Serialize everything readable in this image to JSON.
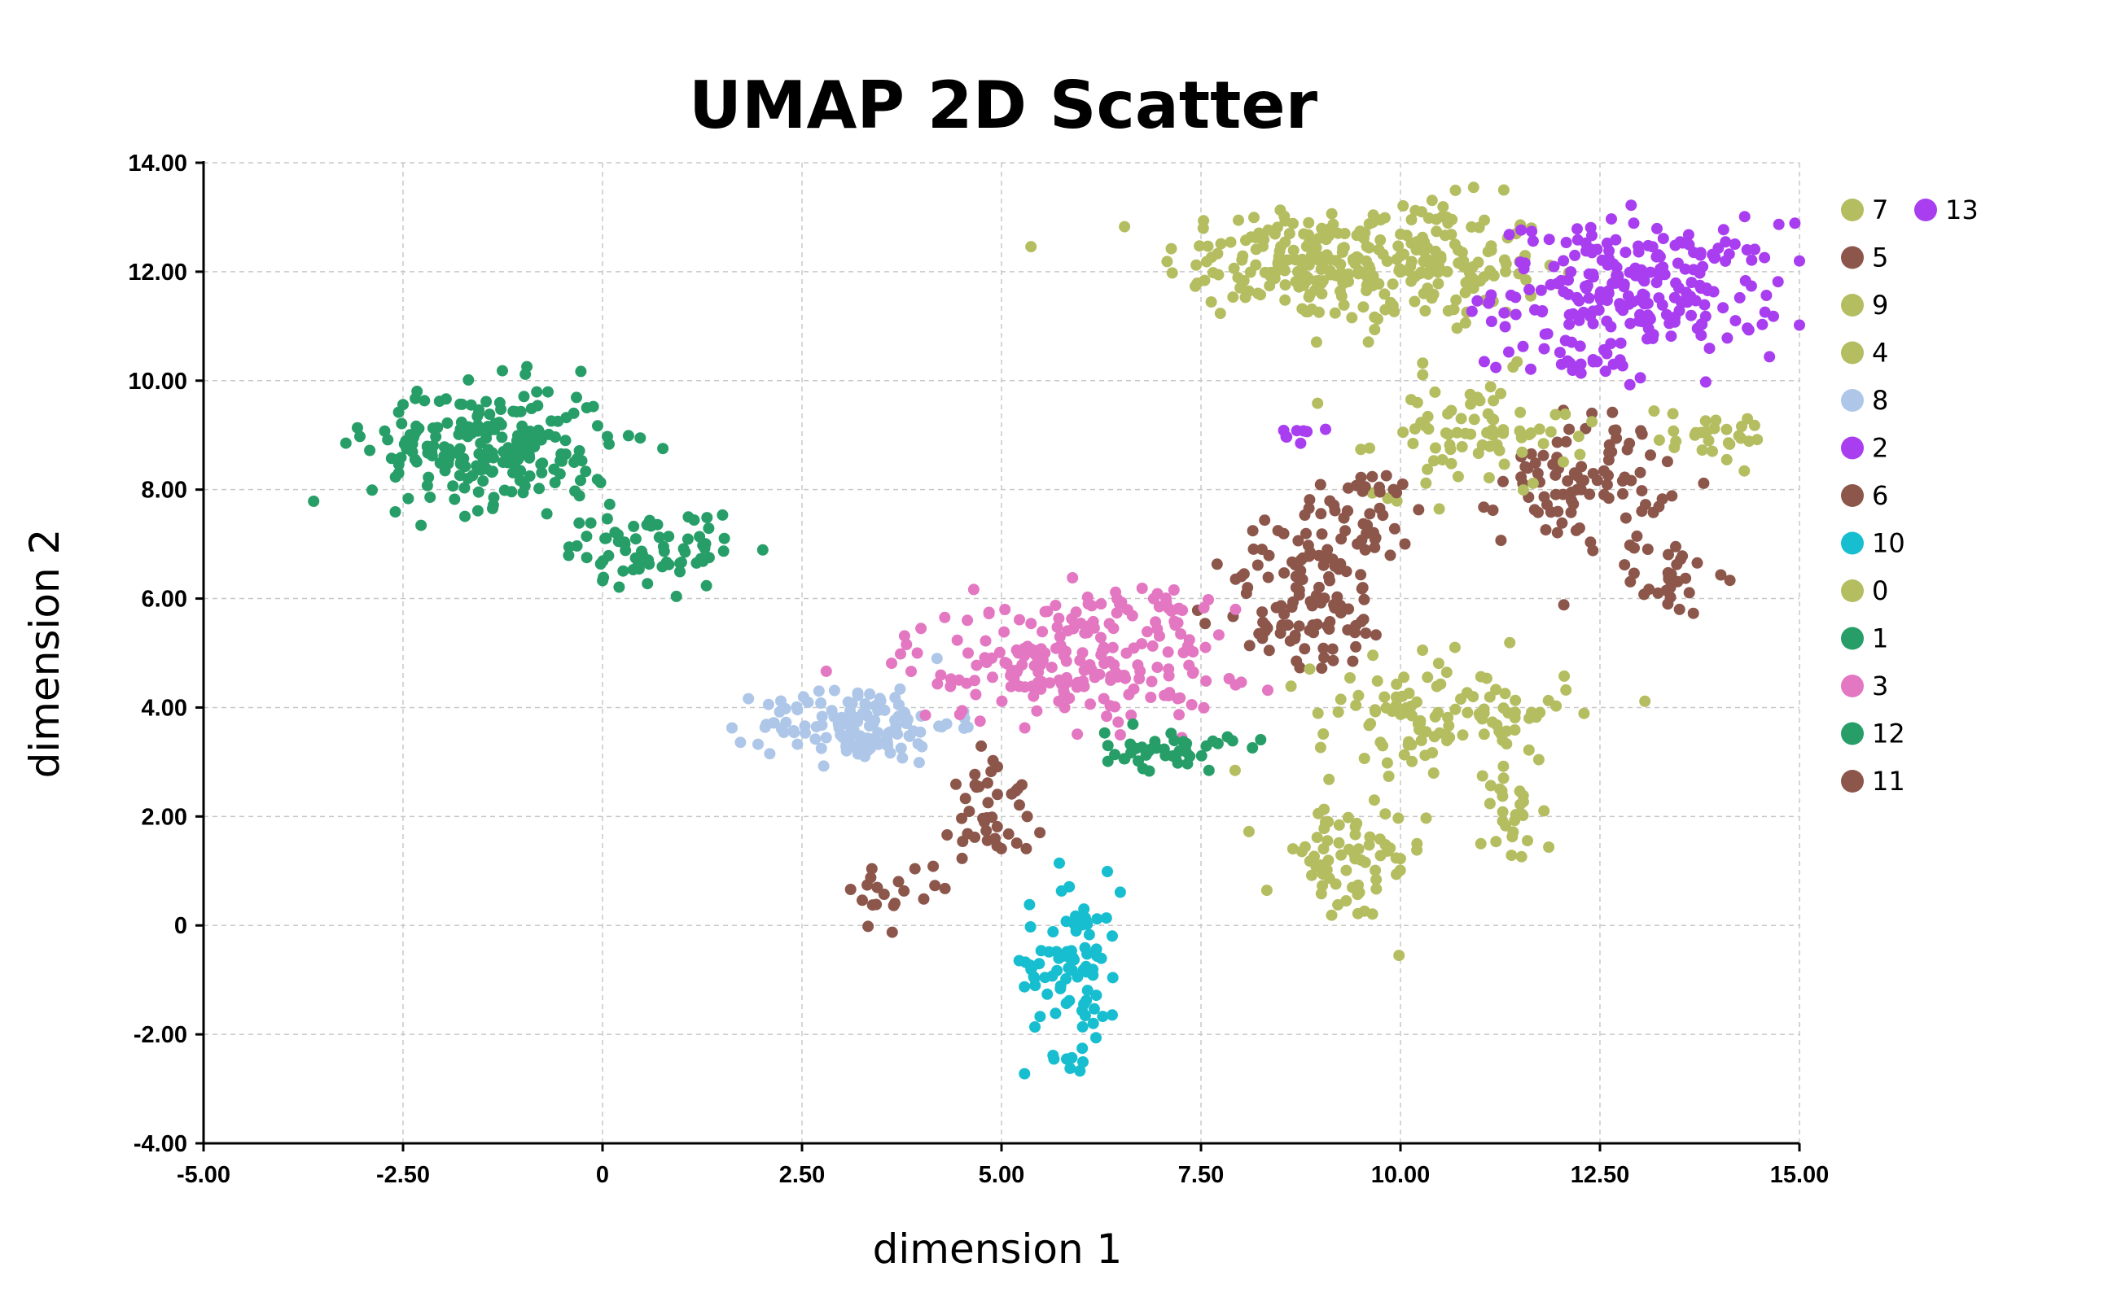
{
  "chart_data": {
    "type": "scatter",
    "title": "UMAP 2D Scatter",
    "xlabel": "dimension 1",
    "ylabel": "dimension 2",
    "xlim": [
      -5,
      15
    ],
    "ylim": [
      -4,
      14
    ],
    "x_ticks": [
      -5,
      -2.5,
      0,
      2.5,
      5,
      7.5,
      10,
      12.5,
      15
    ],
    "x_tick_labels": [
      "-5.00",
      "-2.50",
      "0",
      "2.50",
      "5.00",
      "7.50",
      "10.00",
      "12.50",
      "15.00"
    ],
    "y_ticks": [
      -4,
      -2,
      0,
      2,
      4,
      6,
      8,
      10,
      12,
      14
    ],
    "y_tick_labels": [
      "-4.00",
      "-2.00",
      "0",
      "2.00",
      "4.00",
      "6.00",
      "8.00",
      "10.00",
      "12.00",
      "14.00"
    ],
    "grid": true,
    "legend_position": "right",
    "series": [
      {
        "name": "7",
        "color": "#b5bd61",
        "clusters": [
          {
            "cx": 8.6,
            "cy": 12.2,
            "sx": 0.8,
            "sy": 0.55,
            "n": 130
          },
          {
            "cx": 10.2,
            "cy": 12.1,
            "sx": 0.8,
            "sy": 0.6,
            "n": 180
          }
        ]
      },
      {
        "name": "13",
        "color": "#a83ef0",
        "clusters": [
          {
            "cx": 13.0,
            "cy": 11.7,
            "sx": 0.9,
            "sy": 0.6,
            "n": 230
          },
          {
            "cx": 8.7,
            "cy": 9.0,
            "sx": 0.12,
            "sy": 0.08,
            "n": 8
          }
        ]
      },
      {
        "name": "5",
        "color": "#8c564b",
        "clusters": [
          {
            "cx": 12.3,
            "cy": 8.2,
            "sx": 0.5,
            "sy": 0.6,
            "n": 90
          },
          {
            "cx": 13.4,
            "cy": 6.4,
            "sx": 0.25,
            "sy": 0.35,
            "n": 30
          }
        ]
      },
      {
        "name": "9",
        "color": "#b5bd61",
        "clusters": [
          {
            "cx": 9.3,
            "cy": 1.1,
            "sx": 0.5,
            "sy": 0.55,
            "n": 70
          }
        ]
      },
      {
        "name": "4",
        "color": "#b5bd61",
        "clusters": [
          {
            "cx": 10.9,
            "cy": 9.0,
            "sx": 0.6,
            "sy": 0.55,
            "n": 80
          },
          {
            "cx": 13.8,
            "cy": 9.0,
            "sx": 0.55,
            "sy": 0.25,
            "n": 30
          }
        ]
      },
      {
        "name": "8",
        "color": "#aec7e8",
        "clusters": [
          {
            "cx": 3.2,
            "cy": 3.7,
            "sx": 0.6,
            "sy": 0.35,
            "n": 130
          }
        ]
      },
      {
        "name": "2",
        "color": "#a83ef0",
        "clusters": [
          {
            "cx": 12.3,
            "cy": 10.3,
            "sx": 0.4,
            "sy": 0.2,
            "n": 20
          }
        ]
      },
      {
        "name": "6",
        "color": "#8c564b",
        "clusters": [
          {
            "cx": 8.8,
            "cy": 5.9,
            "sx": 0.55,
            "sy": 0.65,
            "n": 100
          },
          {
            "cx": 9.5,
            "cy": 7.5,
            "sx": 0.45,
            "sy": 0.45,
            "n": 50
          }
        ]
      },
      {
        "name": "10",
        "color": "#17becf",
        "clusters": [
          {
            "cx": 5.9,
            "cy": -0.7,
            "sx": 0.3,
            "sy": 0.85,
            "n": 90
          }
        ]
      },
      {
        "name": "0",
        "color": "#b5bd61",
        "clusters": [
          {
            "cx": 10.5,
            "cy": 3.9,
            "sx": 0.8,
            "sy": 0.5,
            "n": 110
          },
          {
            "cx": 11.4,
            "cy": 2.2,
            "sx": 0.2,
            "sy": 0.6,
            "n": 30
          }
        ]
      },
      {
        "name": "1",
        "color": "#279e68",
        "clusters": [
          {
            "cx": -1.4,
            "cy": 8.8,
            "sx": 0.75,
            "sy": 0.55,
            "n": 230
          },
          {
            "cx": 0.6,
            "cy": 6.9,
            "sx": 0.55,
            "sy": 0.35,
            "n": 70
          }
        ]
      },
      {
        "name": "3",
        "color": "#e377c2",
        "clusters": [
          {
            "cx": 5.8,
            "cy": 4.8,
            "sx": 1.0,
            "sy": 0.55,
            "n": 180
          },
          {
            "cx": 6.7,
            "cy": 5.7,
            "sx": 0.5,
            "sy": 0.35,
            "n": 40
          }
        ]
      },
      {
        "name": "12",
        "color": "#279e68",
        "clusters": [
          {
            "cx": 7.1,
            "cy": 3.2,
            "sx": 0.4,
            "sy": 0.18,
            "n": 45
          }
        ]
      },
      {
        "name": "11",
        "color": "#8c564b",
        "clusters": [
          {
            "cx": 4.9,
            "cy": 2.2,
            "sx": 0.25,
            "sy": 0.65,
            "n": 40
          },
          {
            "cx": 3.6,
            "cy": 0.6,
            "sx": 0.35,
            "sy": 0.25,
            "n": 20
          }
        ]
      }
    ]
  }
}
